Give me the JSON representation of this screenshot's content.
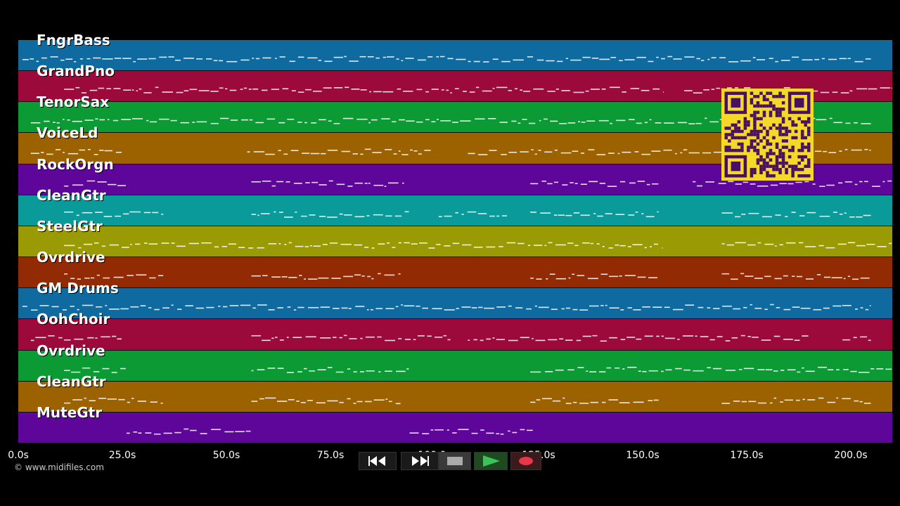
{
  "app": {
    "copyright": "© www.midifiles.com"
  },
  "tracks": [
    {
      "name": "FngrBass",
      "color": "#0f6aa0"
    },
    {
      "name": "GrandPno",
      "color": "#9c0a3c"
    },
    {
      "name": "TenorSax",
      "color": "#0c9a34"
    },
    {
      "name": "VoiceLd",
      "color": "#9c6200"
    },
    {
      "name": "RockOrgn",
      "color": "#5e069a"
    },
    {
      "name": "CleanGtr",
      "color": "#0a9a9a"
    },
    {
      "name": "SteelGtr",
      "color": "#9a9a04"
    },
    {
      "name": "Ovrdrive",
      "color": "#922a04"
    },
    {
      "name": "GM Drums",
      "color": "#0f6aa0"
    },
    {
      "name": "OohChoir",
      "color": "#9c0a3c"
    },
    {
      "name": "Ovrdrive",
      "color": "#0c9a34"
    },
    {
      "name": "CleanGtr",
      "color": "#9c6200"
    },
    {
      "name": "MuteGtr",
      "color": "#5e069a"
    }
  ],
  "timeline": {
    "range_seconds": [
      0,
      210
    ],
    "ticks": [
      {
        "value": 0,
        "label": "0.0s"
      },
      {
        "value": 25,
        "label": "25.0s"
      },
      {
        "value": 50,
        "label": "50.0s"
      },
      {
        "value": 75,
        "label": "75.0s"
      },
      {
        "value": 100,
        "label": "100.0s"
      },
      {
        "value": 125,
        "label": "125.0s"
      },
      {
        "value": 150,
        "label": "150.0s"
      },
      {
        "value": 175,
        "label": "175.0s"
      },
      {
        "value": 200,
        "label": "200.0s"
      }
    ]
  },
  "controls": [
    {
      "name": "rewind-button",
      "icon": "rewind-icon"
    },
    {
      "name": "fast-forward-button",
      "icon": "fast-forward-icon"
    },
    {
      "name": "stop-button",
      "icon": "stop-icon"
    },
    {
      "name": "play-button",
      "icon": "play-icon"
    },
    {
      "name": "record-button",
      "icon": "record-icon"
    }
  ],
  "qr": {
    "icon": "qr-code-icon",
    "bg": "#f5d928",
    "fg": "#4a1060"
  }
}
